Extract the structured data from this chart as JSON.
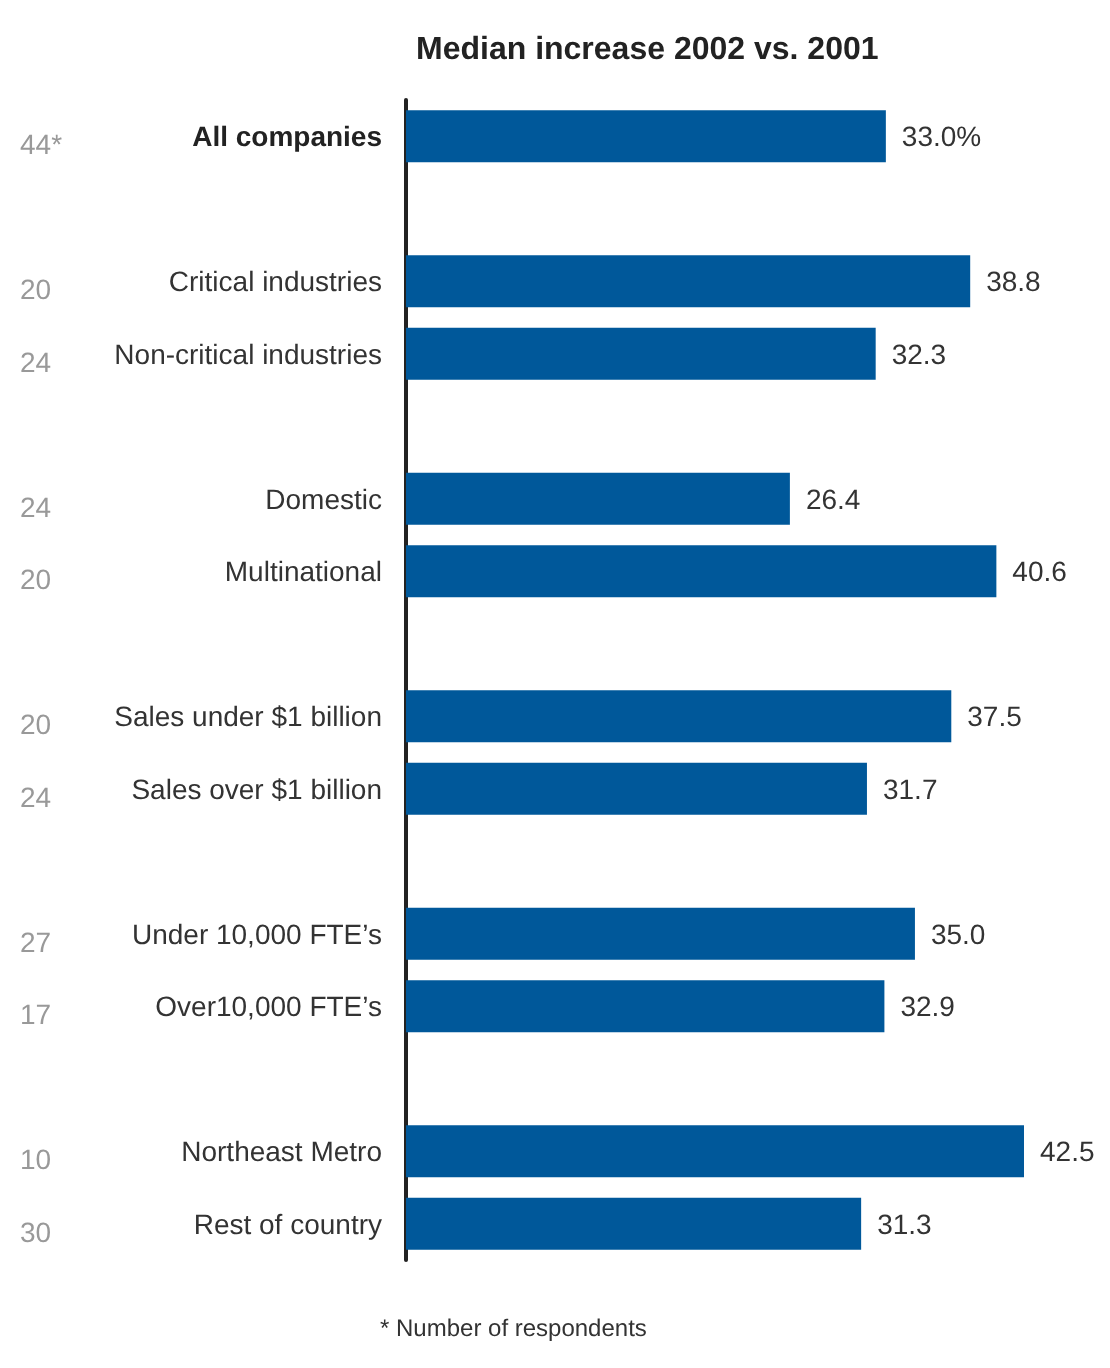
{
  "chart_data": {
    "type": "bar",
    "orientation": "horizontal",
    "title": "Median increase 2002 vs. 2001",
    "categories": [
      "All companies",
      null,
      "Critical industries",
      "Non-critical industries",
      null,
      "Domestic",
      "Multinational",
      null,
      "Sales under $1 billion",
      "Sales over $1 billion",
      null,
      "Under 10,000 FTE’s",
      "Over10,000 FTE’s",
      null,
      "Northeast Metro",
      "Rest of country"
    ],
    "values": [
      33.0,
      null,
      38.8,
      32.3,
      null,
      26.4,
      40.6,
      null,
      37.5,
      31.7,
      null,
      35.0,
      32.9,
      null,
      42.5,
      31.3
    ],
    "value_labels": [
      "33.0%",
      null,
      "38.8",
      "32.3",
      null,
      "26.4",
      "40.6",
      null,
      "37.5",
      "31.7",
      null,
      "35.0",
      "32.9",
      null,
      "42.5",
      "31.3"
    ],
    "color": "#00589a",
    "annotations": [
      "44*",
      "20",
      "24",
      "24",
      "20",
      "20",
      "24",
      "27",
      "17",
      "10",
      "30",
      "* Number of respondents"
    ]
  }
}
